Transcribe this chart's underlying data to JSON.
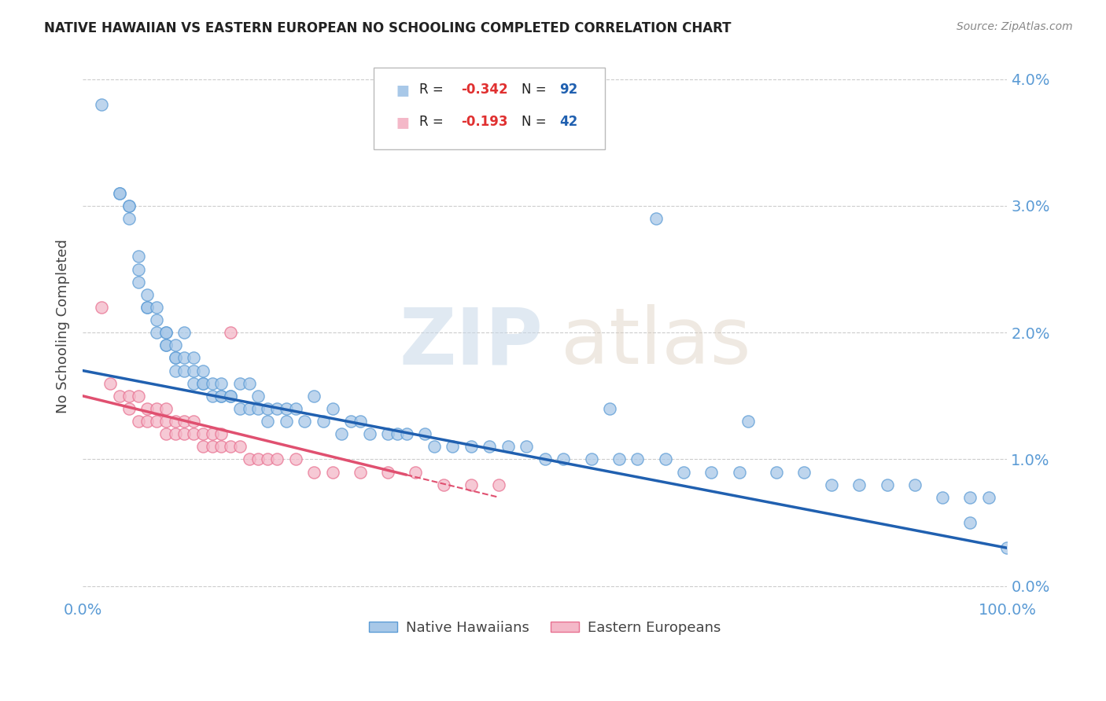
{
  "title": "NATIVE HAWAIIAN VS EASTERN EUROPEAN NO SCHOOLING COMPLETED CORRELATION CHART",
  "source": "Source: ZipAtlas.com",
  "ylabel": "No Schooling Completed",
  "ytick_vals": [
    0.0,
    0.01,
    0.02,
    0.03,
    0.04
  ],
  "ytick_labels": [
    "0.0%",
    "1.0%",
    "2.0%",
    "3.0%",
    "4.0%"
  ],
  "xlim": [
    0.0,
    1.0
  ],
  "ylim": [
    -0.001,
    0.042
  ],
  "blue_color": "#a8c8e8",
  "pink_color": "#f4b8c8",
  "blue_edge": "#5b9bd5",
  "pink_edge": "#e87090",
  "blue_line_color": "#2060b0",
  "pink_line_color": "#e05070",
  "blue_line_y0": 0.017,
  "blue_line_y1": 0.003,
  "pink_line_y0": 0.015,
  "pink_line_y1": 0.007,
  "pink_line_x1": 0.45,
  "blue_x": [
    0.02,
    0.04,
    0.04,
    0.05,
    0.05,
    0.05,
    0.06,
    0.06,
    0.06,
    0.07,
    0.07,
    0.07,
    0.08,
    0.08,
    0.08,
    0.09,
    0.09,
    0.09,
    0.09,
    0.1,
    0.1,
    0.1,
    0.1,
    0.11,
    0.11,
    0.11,
    0.12,
    0.12,
    0.12,
    0.13,
    0.13,
    0.13,
    0.14,
    0.14,
    0.15,
    0.15,
    0.15,
    0.16,
    0.16,
    0.17,
    0.17,
    0.18,
    0.18,
    0.19,
    0.19,
    0.2,
    0.2,
    0.21,
    0.22,
    0.22,
    0.23,
    0.24,
    0.25,
    0.26,
    0.27,
    0.28,
    0.29,
    0.3,
    0.31,
    0.33,
    0.34,
    0.35,
    0.37,
    0.38,
    0.4,
    0.42,
    0.44,
    0.46,
    0.48,
    0.5,
    0.52,
    0.55,
    0.58,
    0.6,
    0.63,
    0.65,
    0.68,
    0.71,
    0.75,
    0.78,
    0.81,
    0.84,
    0.87,
    0.9,
    0.93,
    0.96,
    0.98,
    1.0,
    0.57,
    0.62,
    0.72,
    0.96
  ],
  "blue_y": [
    0.038,
    0.031,
    0.031,
    0.03,
    0.03,
    0.029,
    0.026,
    0.025,
    0.024,
    0.023,
    0.022,
    0.022,
    0.022,
    0.021,
    0.02,
    0.02,
    0.02,
    0.019,
    0.019,
    0.019,
    0.018,
    0.018,
    0.017,
    0.02,
    0.018,
    0.017,
    0.018,
    0.017,
    0.016,
    0.017,
    0.016,
    0.016,
    0.016,
    0.015,
    0.016,
    0.015,
    0.015,
    0.015,
    0.015,
    0.016,
    0.014,
    0.016,
    0.014,
    0.015,
    0.014,
    0.014,
    0.013,
    0.014,
    0.014,
    0.013,
    0.014,
    0.013,
    0.015,
    0.013,
    0.014,
    0.012,
    0.013,
    0.013,
    0.012,
    0.012,
    0.012,
    0.012,
    0.012,
    0.011,
    0.011,
    0.011,
    0.011,
    0.011,
    0.011,
    0.01,
    0.01,
    0.01,
    0.01,
    0.01,
    0.01,
    0.009,
    0.009,
    0.009,
    0.009,
    0.009,
    0.008,
    0.008,
    0.008,
    0.008,
    0.007,
    0.007,
    0.007,
    0.003,
    0.014,
    0.029,
    0.013,
    0.005
  ],
  "pink_x": [
    0.02,
    0.03,
    0.04,
    0.05,
    0.05,
    0.06,
    0.06,
    0.07,
    0.07,
    0.08,
    0.08,
    0.09,
    0.09,
    0.09,
    0.1,
    0.1,
    0.11,
    0.11,
    0.12,
    0.12,
    0.13,
    0.13,
    0.14,
    0.14,
    0.15,
    0.15,
    0.16,
    0.17,
    0.18,
    0.19,
    0.2,
    0.21,
    0.23,
    0.25,
    0.27,
    0.3,
    0.33,
    0.36,
    0.39,
    0.42,
    0.45,
    0.16
  ],
  "pink_y": [
    0.022,
    0.016,
    0.015,
    0.015,
    0.014,
    0.015,
    0.013,
    0.014,
    0.013,
    0.014,
    0.013,
    0.014,
    0.013,
    0.012,
    0.013,
    0.012,
    0.013,
    0.012,
    0.013,
    0.012,
    0.012,
    0.011,
    0.012,
    0.011,
    0.012,
    0.011,
    0.011,
    0.011,
    0.01,
    0.01,
    0.01,
    0.01,
    0.01,
    0.009,
    0.009,
    0.009,
    0.009,
    0.009,
    0.008,
    0.008,
    0.008,
    0.02
  ]
}
